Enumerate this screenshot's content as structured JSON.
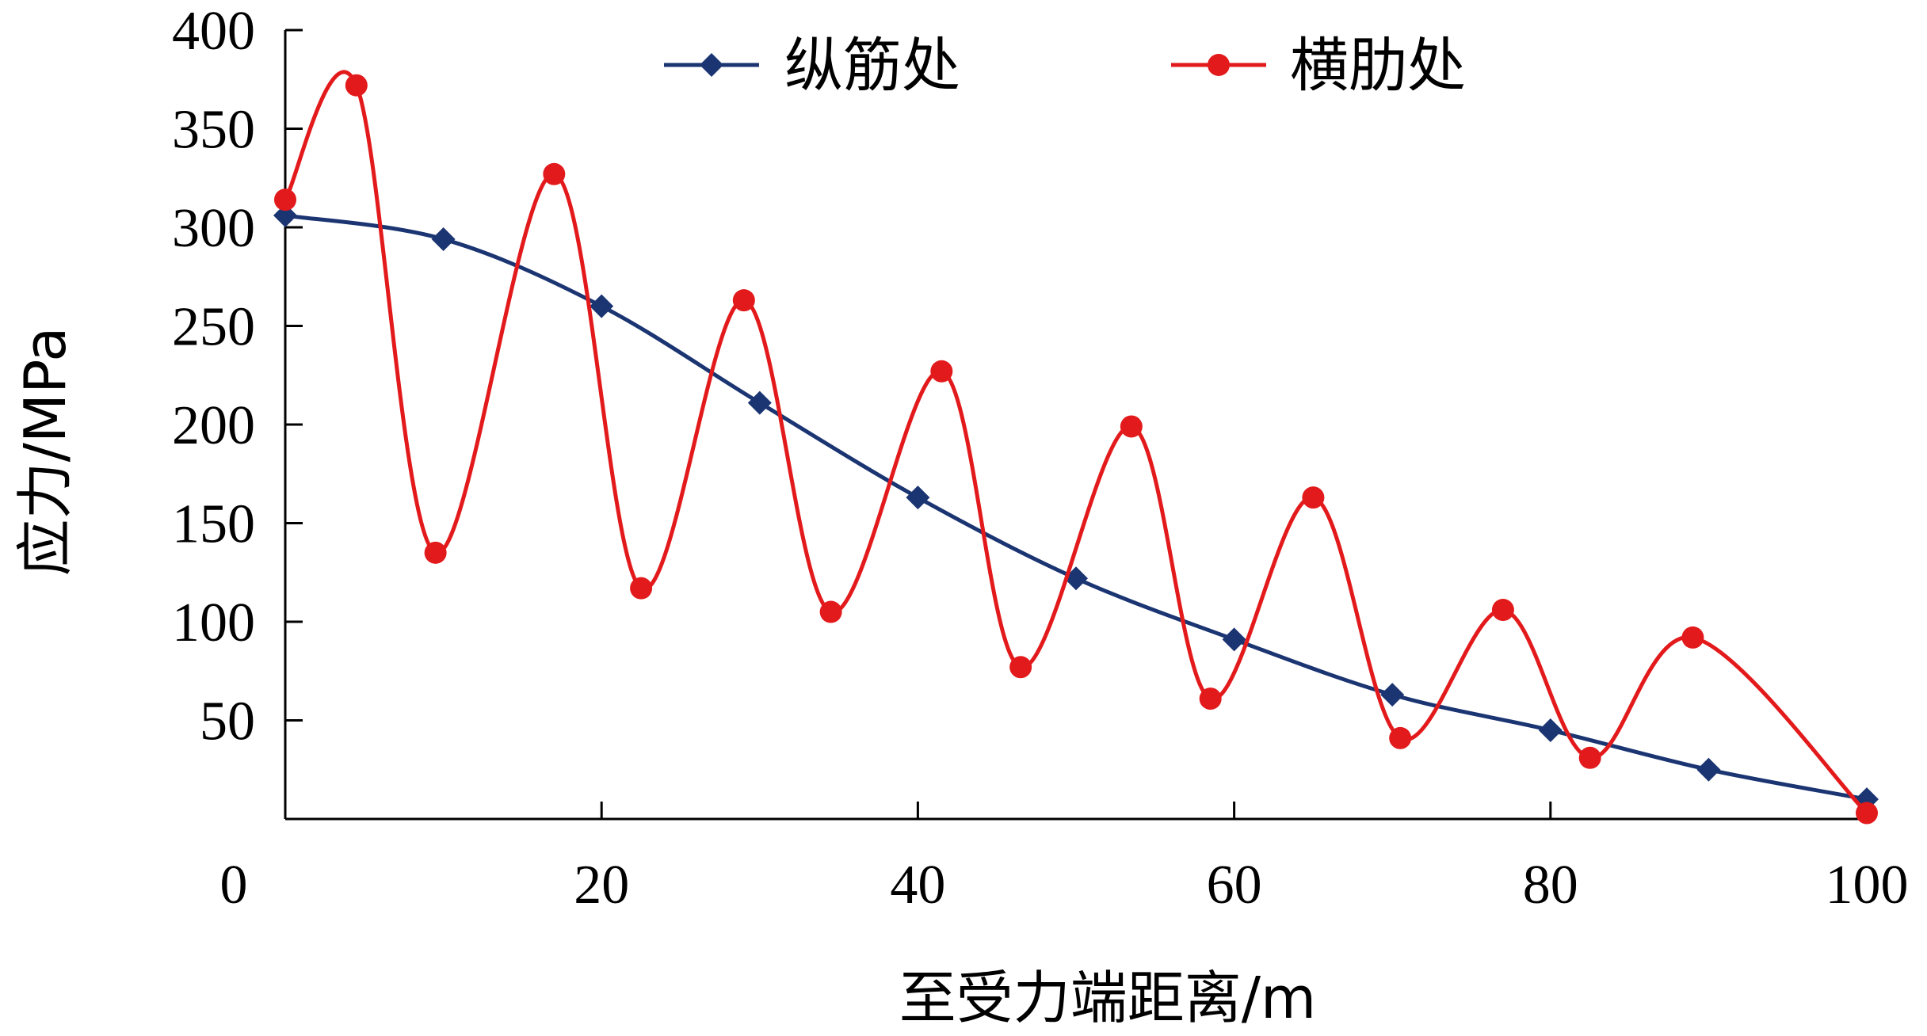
{
  "chart_data": {
    "type": "line",
    "xlabel": "至受力端距离/m",
    "ylabel": "应力/MPa",
    "xlim": [
      0,
      100
    ],
    "ylim": [
      0,
      400
    ],
    "x_ticks": [
      0,
      20,
      40,
      60,
      80,
      100
    ],
    "y_ticks": [
      50,
      100,
      150,
      200,
      250,
      300,
      350,
      400
    ],
    "grid": false,
    "legend_position": "top-center",
    "series": [
      {
        "name": "纵筋处",
        "color": "#1b3572",
        "marker": "diamond",
        "x": [
          0,
          10,
          20,
          30,
          40,
          50,
          60,
          70,
          80,
          90,
          100
        ],
        "y": [
          306,
          294,
          260,
          211,
          163,
          122,
          91,
          63,
          45,
          25,
          10
        ]
      },
      {
        "name": "横肋处",
        "color": "#e31a1c",
        "marker": "circle",
        "x": [
          0,
          4.5,
          9.5,
          17,
          22.5,
          29,
          34.5,
          41.5,
          46.5,
          53.5,
          58.5,
          65,
          70.5,
          77,
          82.5,
          89,
          100
        ],
        "y": [
          314,
          372,
          135,
          327,
          117,
          263,
          105,
          227,
          77,
          199,
          61,
          163,
          41,
          106,
          31,
          92,
          3
        ]
      }
    ]
  }
}
